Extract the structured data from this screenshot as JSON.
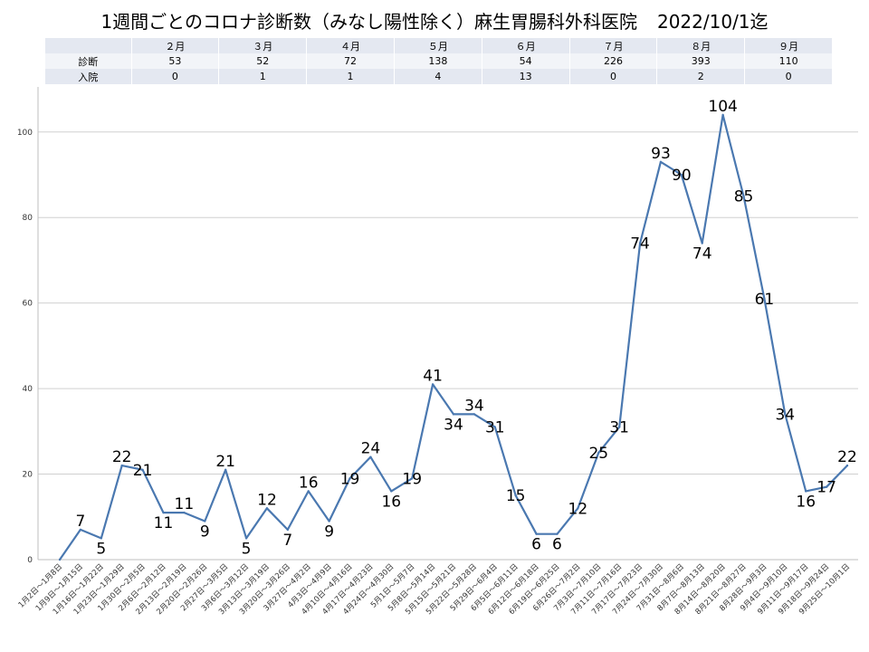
{
  "title": {
    "main": "1週間ごとのコロナ診断数（みなし陽性除く）麻生胃腸科外科医院",
    "date": "2022/10/1迄"
  },
  "summary_table": {
    "months": [
      "２月",
      "３月",
      "４月",
      "５月",
      "６月",
      "７月",
      "８月",
      "９月"
    ],
    "rows": [
      {
        "label": "診断",
        "values": [
          "53",
          "52",
          "72",
          "138",
          "54",
          "226",
          "393",
          "110"
        ]
      },
      {
        "label": "入院",
        "values": [
          "0",
          "1",
          "1",
          "4",
          "13",
          "0",
          "2",
          "0"
        ]
      }
    ]
  },
  "chart_data": {
    "type": "line",
    "title": "1週間ごとのコロナ診断数（みなし陽性除く）麻生胃腸科外科医院",
    "xlabel": "",
    "ylabel": "",
    "ylim": [
      0,
      108
    ],
    "yticks": [
      0,
      20,
      40,
      60,
      80,
      100
    ],
    "grid": true,
    "line_color": "#4a78b0",
    "grid_color": "#d0d0d0",
    "categories": [
      "1月2日～1月8日",
      "1月9日～1月15日",
      "1月16日～1月22日",
      "1月23日～1月29日",
      "1月30日～2月5日",
      "2月6日～2月12日",
      "2月13日～2月19日",
      "2月20日～2月26日",
      "2月27日～3月5日",
      "3月6日～3月12日",
      "3月13日～3月19日",
      "3月20日～3月26日",
      "3月27日～4月2日",
      "4月3日～4月9日",
      "4月10日～4月16日",
      "4月17日～4月23日",
      "4月24日～4月30日",
      "5月1日～5月7日",
      "5月8日～5月14日",
      "5月15日～5月21日",
      "5月22日～5月28日",
      "5月29日～6月4日",
      "6月5日～6月11日",
      "6月12日～6月18日",
      "6月19日～6月25日",
      "6月26日～7月2日",
      "7月3日～7月10日",
      "7月11日～7月16日",
      "7月17日～7月23日",
      "7月24日～7月30日",
      "7月31日～8月6日",
      "8月7日～8月13日",
      "8月14日～8月20日",
      "8月21日～8月27日",
      "8月28日～9月3日",
      "9月4日～9月10日",
      "9月11日～9月17日",
      "9月18日～9月24日",
      "9月25日～10月1日"
    ],
    "values": [
      0,
      7,
      5,
      22,
      21,
      11,
      11,
      9,
      21,
      5,
      12,
      7,
      16,
      9,
      19,
      24,
      16,
      19,
      41,
      34,
      34,
      31,
      15,
      6,
      6,
      12,
      25,
      31,
      74,
      93,
      90,
      74,
      104,
      85,
      61,
      34,
      16,
      17,
      22
    ],
    "data_labels": [
      "",
      "7",
      "5",
      "22",
      "21",
      "11",
      "11",
      "9",
      "21",
      "5",
      "12",
      "7",
      "16",
      "9",
      "19",
      "24",
      "16",
      "19",
      "41",
      "34",
      "34",
      "31",
      "15",
      "6",
      "6",
      "12",
      "25",
      "31",
      "74",
      "93",
      "90",
      "74",
      "104",
      "85",
      "61",
      "34",
      "16",
      "17",
      "22"
    ]
  }
}
